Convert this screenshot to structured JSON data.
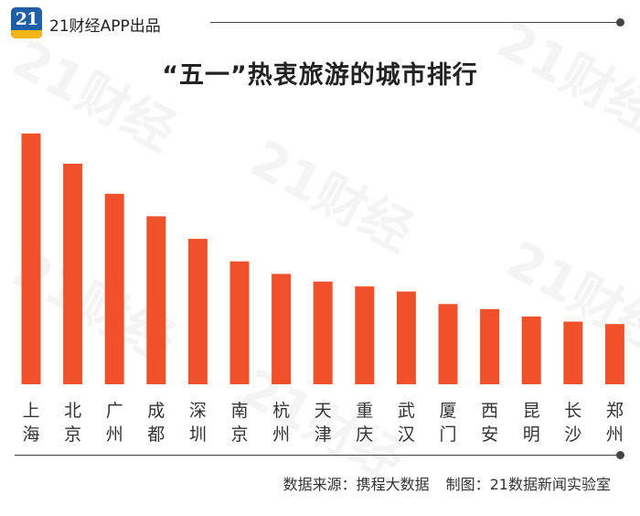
{
  "header": {
    "logo_text": "21",
    "brand": "21财经APP出品"
  },
  "watermark_text": "21财经",
  "footer": {
    "source": "数据来源：携程大数据",
    "producer": "制图：21数据新闻实验室"
  },
  "colors": {
    "bar": "#f0512a",
    "text": "#333333",
    "rule": "#444444"
  },
  "chart_data": {
    "type": "bar",
    "title": "“五一”热衷旅游的城市排行",
    "xlabel": "",
    "ylabel": "",
    "ylim": [
      0,
      100
    ],
    "axis_shown": false,
    "grid": false,
    "legend": "none",
    "categories": [
      "上海",
      "北京",
      "广州",
      "成都",
      "深圳",
      "南京",
      "杭州",
      "天津",
      "重庆",
      "武汉",
      "厦门",
      "西安",
      "昆明",
      "长沙",
      "郑州"
    ],
    "values": [
      100,
      88,
      76,
      67,
      58,
      49,
      44,
      41,
      39,
      37,
      32,
      30,
      27,
      25,
      24
    ]
  }
}
